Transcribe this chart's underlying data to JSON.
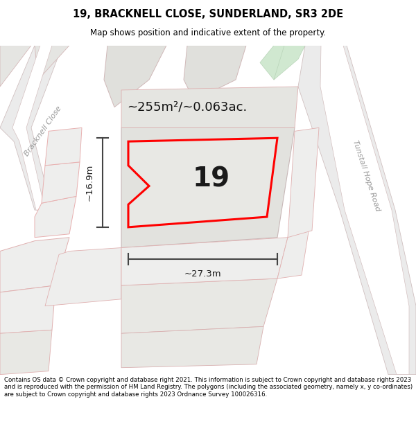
{
  "title": "19, BRACKNELL CLOSE, SUNDERLAND, SR3 2DE",
  "subtitle": "Map shows position and indicative extent of the property.",
  "footer": "Contains OS data © Crown copyright and database right 2021. This information is subject to Crown copyright and database rights 2023 and is reproduced with the permission of HM Land Registry. The polygons (including the associated geometry, namely x, y co-ordinates) are subject to Crown copyright and database rights 2023 Ordnance Survey 100026316.",
  "label_number": "19",
  "area_label": "~255m²/~0.063ac.",
  "dim_width": "~27.3m",
  "dim_height": "~16.9m",
  "road_label_1": "Bracknell Close",
  "road_label_2": "Tunstall Hope Road"
}
